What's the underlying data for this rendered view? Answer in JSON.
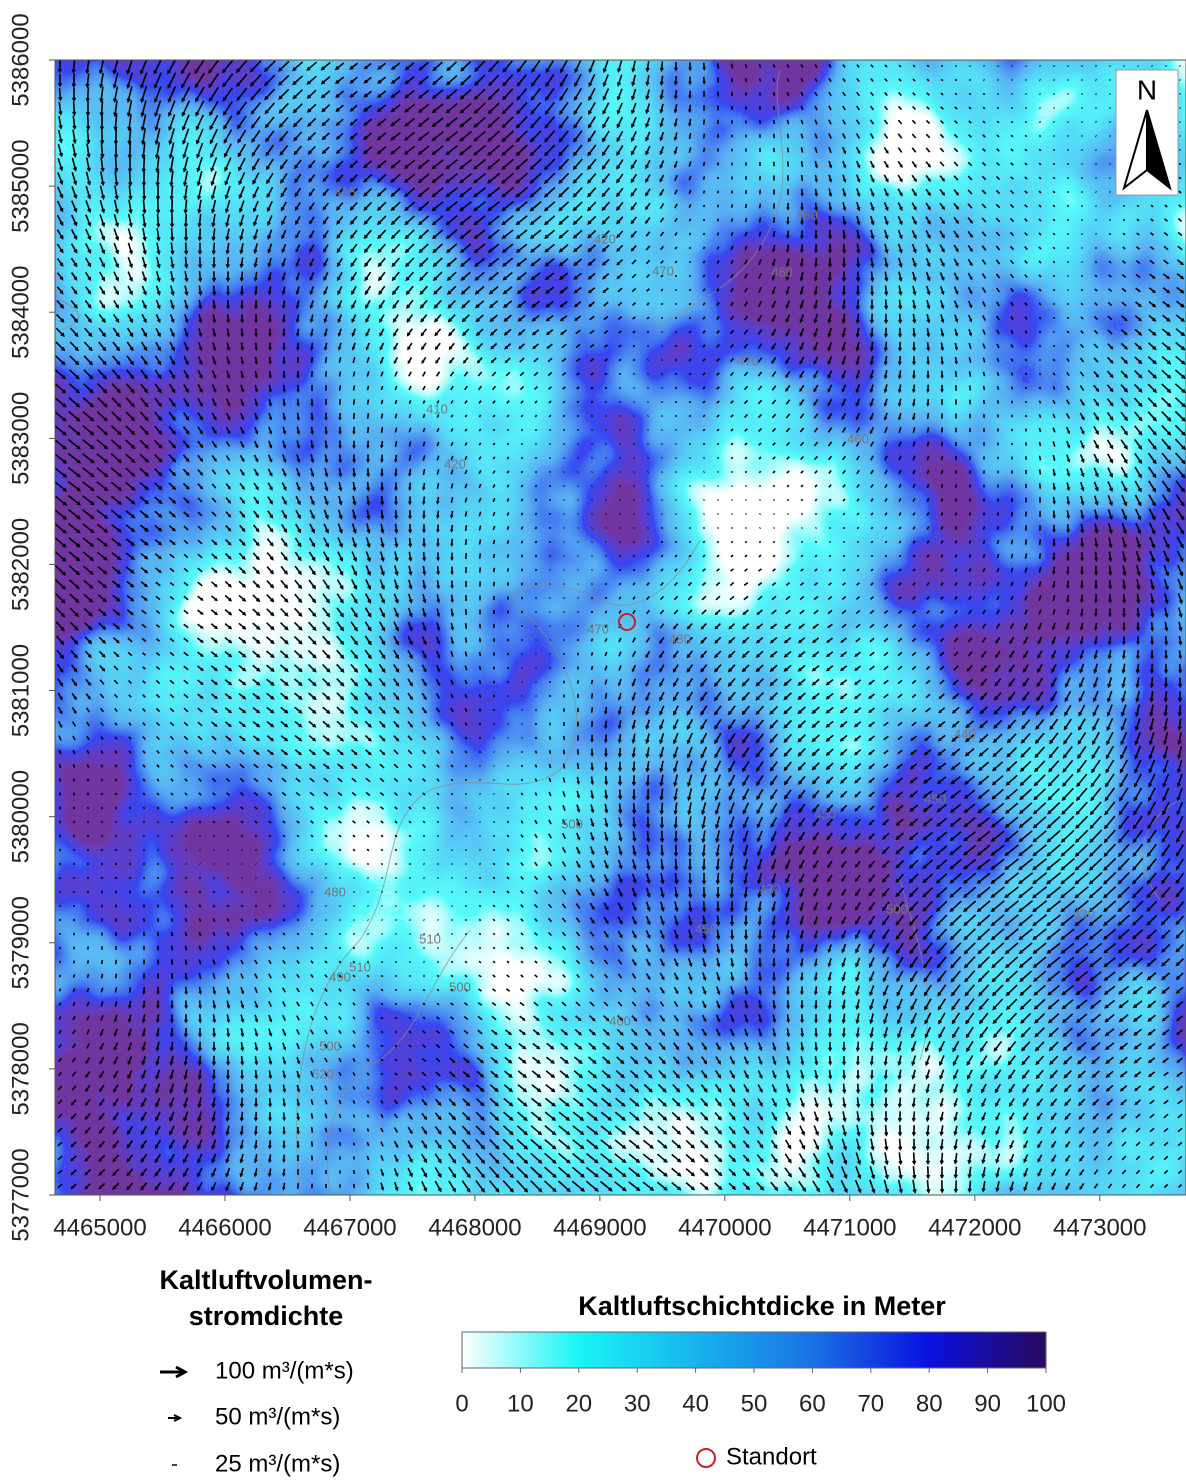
{
  "map": {
    "xlim": [
      4464640,
      4473690
    ],
    "ylim": [
      5377000,
      5386000
    ],
    "xticks": [
      4465000,
      4466000,
      4467000,
      4468000,
      4469000,
      4470000,
      4471000,
      4472000,
      4473000
    ],
    "yticks": [
      5377000,
      5378000,
      5379000,
      5380000,
      5381000,
      5382000,
      5383000,
      5384000,
      5385000,
      5386000
    ],
    "north": "N",
    "contour_labels": [
      "415",
      "420",
      "410",
      "420",
      "470",
      "480",
      "480",
      "470",
      "460",
      "470",
      "480",
      "500",
      "480",
      "510",
      "490",
      "510",
      "500",
      "520",
      "500",
      "460",
      "450",
      "430",
      "450",
      "500",
      "440",
      "430",
      "450"
    ]
  },
  "flow_legend": {
    "title": [
      "Kaltluftvolumen-",
      "stromdichte"
    ],
    "entries": [
      "100 m³/(m*s)",
      "50 m³/(m*s)",
      "25 m³/(m*s)"
    ]
  },
  "colorbar": {
    "title": "Kaltluftschichtdicke in Meter",
    "lim": [
      0,
      100
    ],
    "ticks": [
      0,
      10,
      20,
      30,
      40,
      50,
      60,
      70,
      80,
      90,
      100
    ],
    "colors": [
      "#ffffff",
      "#19f5f5",
      "#17b4ee",
      "#1a72e4",
      "#0a10e0",
      "#2a0a5c"
    ]
  },
  "site": {
    "label": "Standort",
    "color": "#d02020"
  }
}
